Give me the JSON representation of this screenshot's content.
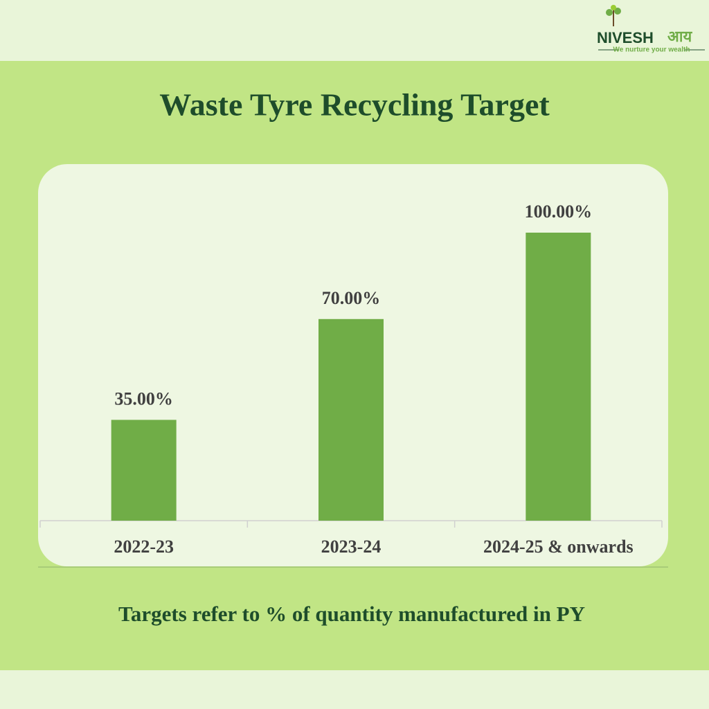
{
  "chart_data": {
    "type": "bar",
    "title": "Waste Tyre Recycling Target",
    "categories": [
      "2022-23",
      "2023-24",
      "2024-25 & onwards"
    ],
    "values": [
      35,
      70,
      100
    ],
    "value_labels": [
      "35.00%",
      "70.00%",
      "100.00%"
    ],
    "color": "#70ad47",
    "note": "Targets refer to % of  quantity manufactured in PY"
  },
  "logo": {
    "name": "NIVESH",
    "hindi": "आय",
    "tagline": "We nurture your wealth"
  }
}
